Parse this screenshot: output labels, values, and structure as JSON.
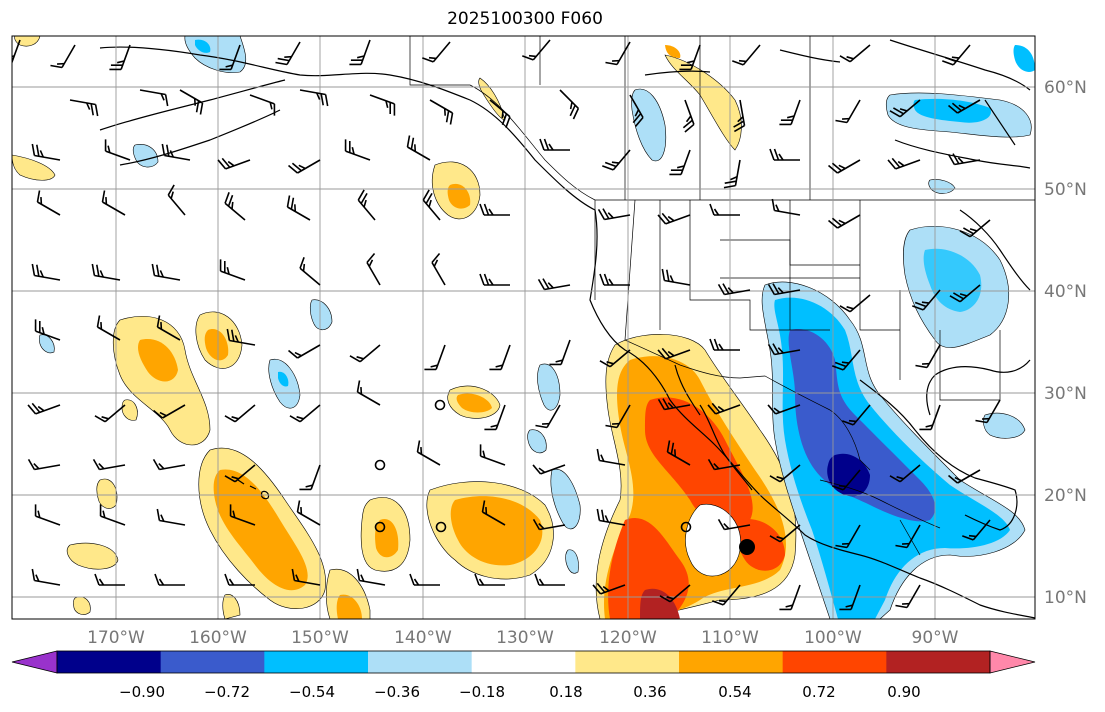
{
  "title": "2025100300 F060",
  "lon_labels": [
    "170°W",
    "160°W",
    "150°W",
    "140°W",
    "130°W",
    "120°W",
    "110°W",
    "100°W",
    "90°W"
  ],
  "lat_labels": [
    "60°N",
    "50°N",
    "40°N",
    "30°N",
    "20°N",
    "10°N"
  ],
  "colorbar": {
    "ticks": [
      "−0.90",
      "−0.72",
      "−0.54",
      "−0.36",
      "−0.18",
      "0.18",
      "0.36",
      "0.54",
      "0.72",
      "0.90"
    ],
    "colors": [
      "#9932CC",
      "#00008B",
      "#3A5BCC",
      "#00BFFF",
      "#ADDFF7",
      "#FFFFFF",
      "#FFE88A",
      "#FFA500",
      "#FF4500",
      "#B22222",
      "#FF88AA"
    ]
  },
  "legend_colors": {
    "neg_light": "#ADDFF7",
    "neg_mid": "#00BFFF",
    "neg_strong": "#3A5BCC",
    "neg_max": "#00008B",
    "pos_light": "#FFE88A",
    "pos_mid": "#FFA500",
    "pos_strong": "#FF4500",
    "pos_max": "#B22222"
  }
}
